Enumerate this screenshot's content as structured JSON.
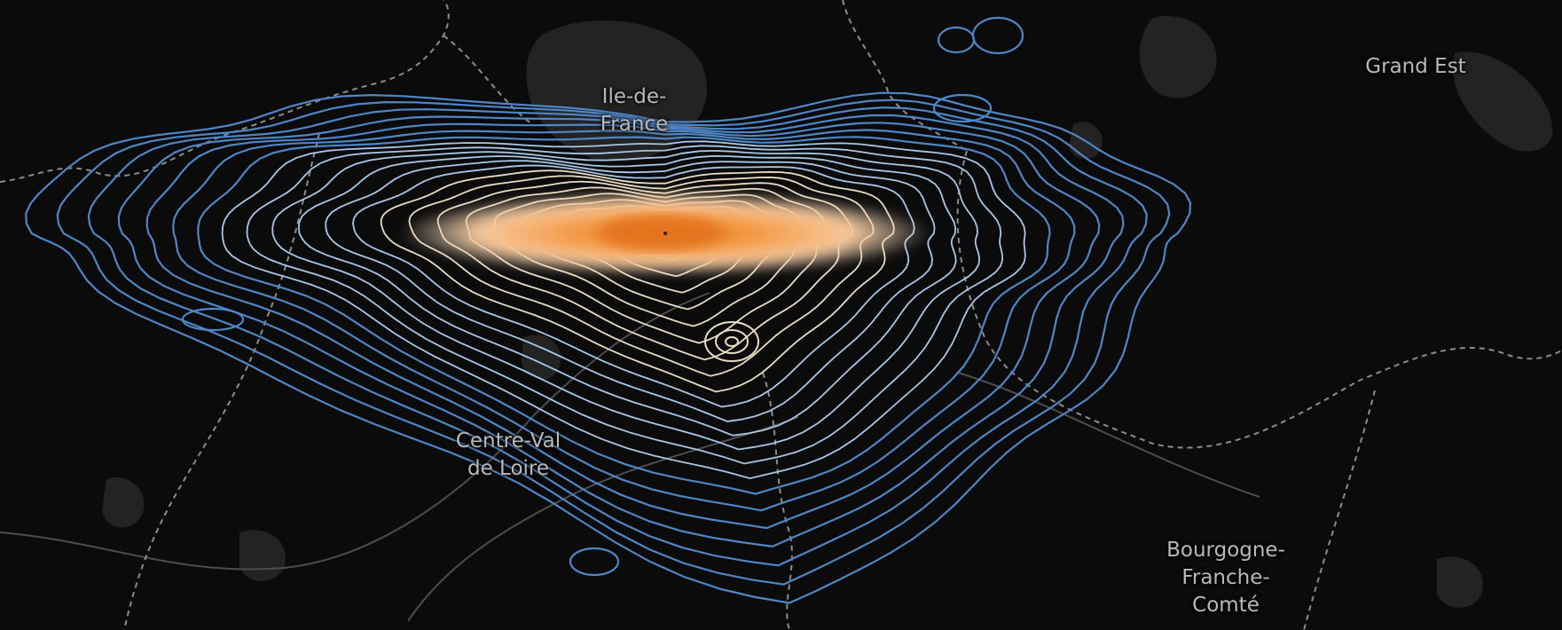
{
  "map": {
    "type": "density-contour-map",
    "basemap": "dark",
    "colors": {
      "background": "#0b0b0b",
      "land_patch": "#2a2a2a",
      "border": "#8a8a8a",
      "road": "#5a5a5a",
      "contour_outer": "#4f86c6",
      "contour_mid": "#a9c7e6",
      "contour_inner": "#e9dcc4",
      "core": "#f28a2a"
    },
    "contour_levels": 22
  },
  "regions": [
    {
      "id": "idf",
      "lines": [
        "Ile-de-",
        "France"
      ]
    },
    {
      "id": "ge",
      "lines": [
        "Grand Est"
      ]
    },
    {
      "id": "cvl",
      "lines": [
        "Centre-Val",
        "de Loire"
      ]
    },
    {
      "id": "bfc",
      "lines": [
        "Bourgogne-",
        "Franche-",
        "Comté"
      ]
    }
  ]
}
